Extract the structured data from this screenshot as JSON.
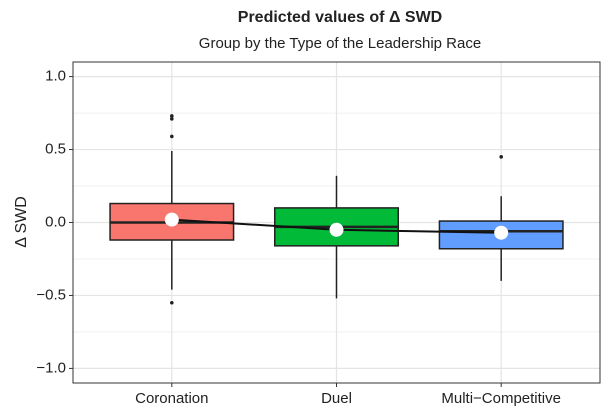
{
  "chart_data": {
    "type": "box",
    "title": "Predicted values of Δ SWD",
    "subtitle": "Group by the Type of the Leadership Race",
    "y_label": "Δ SWD",
    "categories": [
      "Coronation",
      "Duel",
      "Multi−Competitive"
    ],
    "colors": [
      "#F8766D",
      "#00BA38",
      "#619CFF"
    ],
    "lower_whisker": [
      -0.46,
      -0.52,
      -0.4
    ],
    "q1": [
      -0.12,
      -0.16,
      -0.18
    ],
    "median": [
      0.0,
      -0.03,
      -0.06
    ],
    "q3": [
      0.13,
      0.1,
      0.01
    ],
    "upper_whisker": [
      0.49,
      0.32,
      0.18
    ],
    "outliers": [
      [
        0.73,
        0.71,
        0.59,
        -0.55
      ],
      [],
      [
        0.45
      ]
    ],
    "means": [
      0.02,
      -0.05,
      -0.07
    ],
    "ylim": [
      -1.1,
      1.1
    ],
    "yticks": [
      {
        "value": -1,
        "label": "−1.0"
      },
      {
        "value": -0.5,
        "label": "−0.5"
      },
      {
        "value": 0,
        "label": "0.0"
      },
      0.5,
      {
        "value": 1,
        "label": "1.0"
      }
    ],
    "minor_yticks": [
      -0.75,
      -0.25,
      0.25,
      0.75
    ],
    "grid": true
  }
}
